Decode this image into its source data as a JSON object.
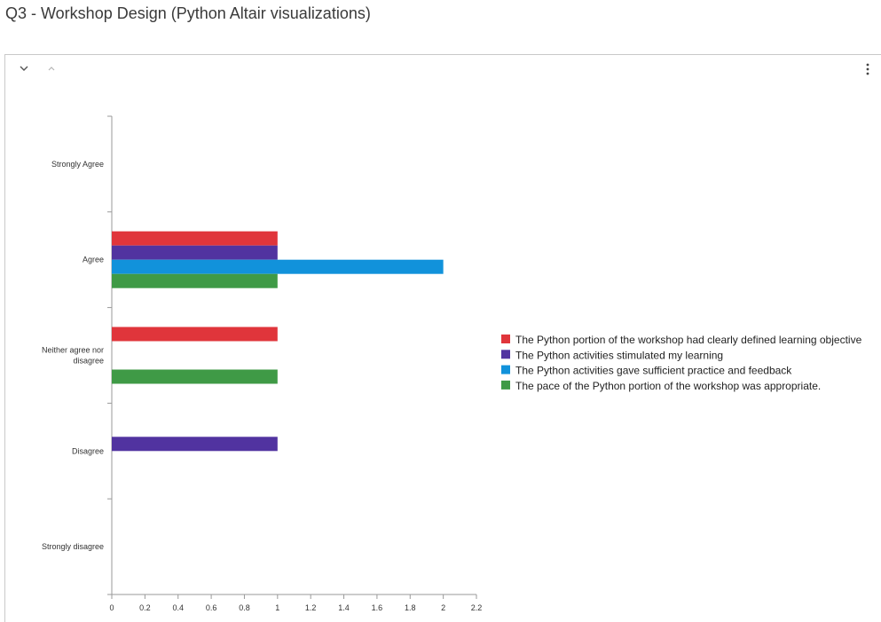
{
  "page": {
    "title": "Q3 - Workshop Design (Python Altair visualizations)"
  },
  "toolbar": {
    "collapse_icon": "chevron-down-icon",
    "expand_icon": "chevron-up-icon",
    "menu_icon": "more-vertical-icon"
  },
  "chart_data": {
    "type": "bar",
    "orientation": "horizontal",
    "title": "",
    "xlabel": "",
    "ylabel": "",
    "categories": [
      [
        "Strongly Agree"
      ],
      [
        "Agree"
      ],
      [
        "Neither agree nor",
        "disagree"
      ],
      [
        "Disagree"
      ],
      [
        "Strongly disagree"
      ]
    ],
    "series": [
      {
        "name": "The Python portion of the workshop had clearly defined learning objective",
        "color": "#e0353b",
        "values": [
          0,
          1,
          1,
          0,
          0
        ]
      },
      {
        "name": "The Python activities stimulated my learning",
        "color": "#5133a0",
        "values": [
          0,
          1,
          0,
          1,
          0
        ]
      },
      {
        "name": "The Python activities gave sufficient practice and feedback",
        "color": "#1192db",
        "values": [
          0,
          2,
          0,
          0,
          0
        ]
      },
      {
        "name": "The pace of the Python portion of the workshop was appropriate.",
        "color": "#3f9a46",
        "values": [
          0,
          1,
          1,
          0,
          0
        ]
      }
    ],
    "xlim": [
      0,
      2.2
    ],
    "xticks": [
      "0",
      "0.2",
      "0.4",
      "0.6",
      "0.8",
      "1",
      "1.2",
      "1.4",
      "1.6",
      "1.8",
      "2",
      "2.2"
    ],
    "grid": false,
    "legend_position": "right"
  }
}
